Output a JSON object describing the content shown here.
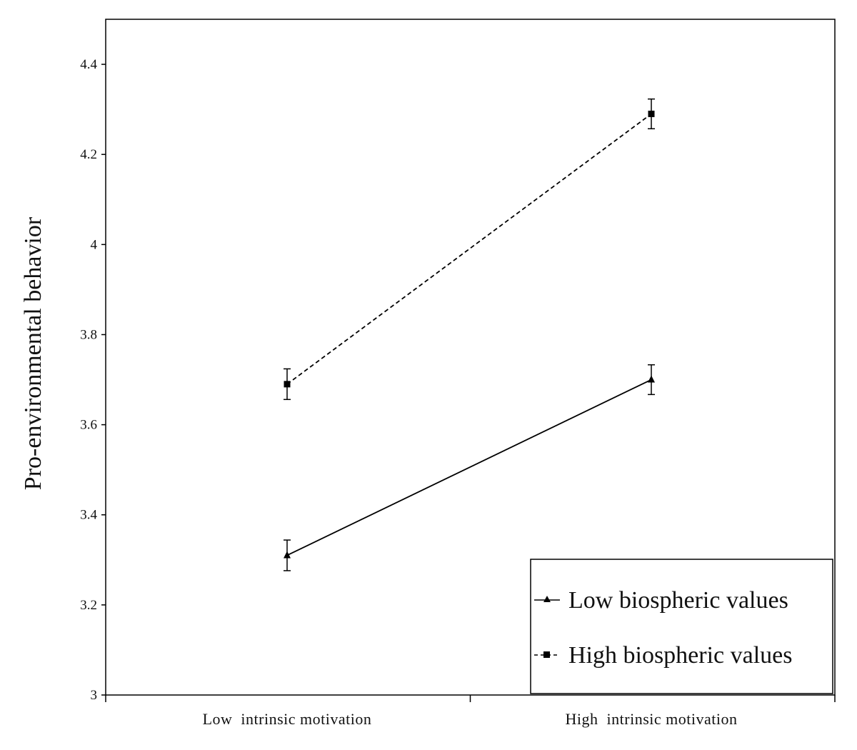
{
  "chart_data": {
    "type": "line",
    "categories": [
      "Low  intrinsic motivation",
      "High  intrinsic motivation"
    ],
    "ylabel": "Pro-environmental behavior",
    "xlabel": "",
    "ylim": [
      3,
      4.5
    ],
    "yticks": [
      "3",
      "3.2",
      "3.4",
      "3.6",
      "3.8",
      "4",
      "4.2",
      "4.4"
    ],
    "legend_position": "bottom-right",
    "grid": false,
    "series": [
      {
        "name": "Low biospheric values",
        "values": [
          3.31,
          3.7
        ],
        "errors": [
          0.034,
          0.033
        ],
        "marker": "triangle",
        "line_style": "solid"
      },
      {
        "name": "High biospheric values",
        "values": [
          3.69,
          4.29
        ],
        "errors": [
          0.034,
          0.033
        ],
        "marker": "square",
        "line_style": "dashed"
      }
    ]
  }
}
